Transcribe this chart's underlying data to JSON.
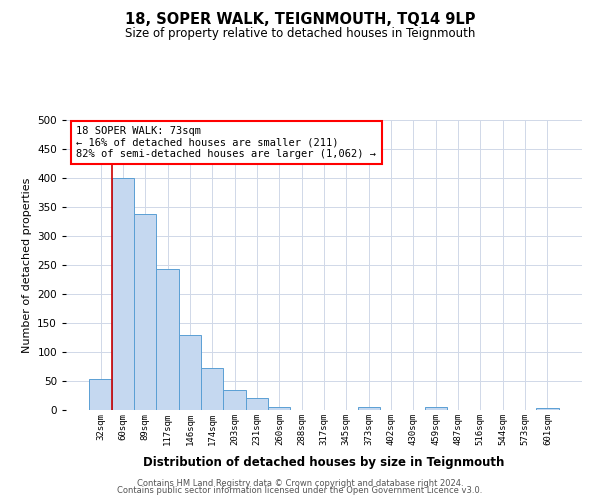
{
  "title": "18, SOPER WALK, TEIGNMOUTH, TQ14 9LP",
  "subtitle": "Size of property relative to detached houses in Teignmouth",
  "xlabel": "Distribution of detached houses by size in Teignmouth",
  "ylabel": "Number of detached properties",
  "bar_labels": [
    "32sqm",
    "60sqm",
    "89sqm",
    "117sqm",
    "146sqm",
    "174sqm",
    "203sqm",
    "231sqm",
    "260sqm",
    "288sqm",
    "317sqm",
    "345sqm",
    "373sqm",
    "402sqm",
    "430sqm",
    "459sqm",
    "487sqm",
    "516sqm",
    "544sqm",
    "573sqm",
    "601sqm"
  ],
  "bar_values": [
    53,
    400,
    338,
    243,
    130,
    72,
    35,
    20,
    6,
    0,
    0,
    0,
    6,
    0,
    0,
    6,
    0,
    0,
    0,
    0,
    3
  ],
  "bar_color": "#c5d8f0",
  "bar_edge_color": "#5a9fd4",
  "annotation_line1": "18 SOPER WALK: 73sqm",
  "annotation_line2": "← 16% of detached houses are smaller (211)",
  "annotation_line3": "82% of semi-detached houses are larger (1,062) →",
  "red_line_color": "#cc0000",
  "red_line_x": 1.5,
  "ylim": [
    0,
    500
  ],
  "yticks": [
    0,
    50,
    100,
    150,
    200,
    250,
    300,
    350,
    400,
    450,
    500
  ],
  "footer_line1": "Contains HM Land Registry data © Crown copyright and database right 2024.",
  "footer_line2": "Contains public sector information licensed under the Open Government Licence v3.0.",
  "bg_color": "#ffffff",
  "grid_color": "#d0d8e8"
}
